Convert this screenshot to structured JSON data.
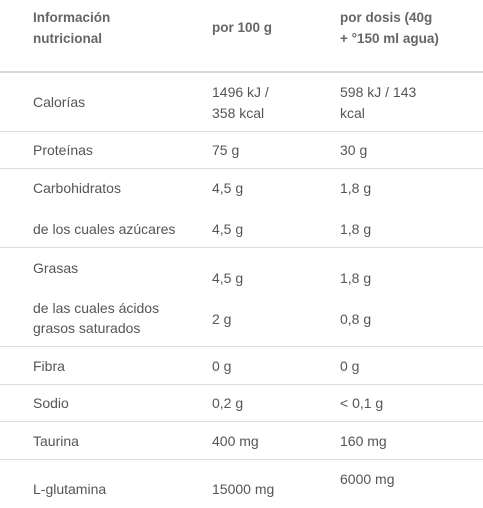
{
  "table": {
    "headers": {
      "col1": [
        "Información",
        "nutricional"
      ],
      "col2": "por 100 g",
      "col3": [
        "por dosis (40g",
        "+ °150 ml agua)"
      ]
    },
    "rows": [
      {
        "label": [
          "Calorías"
        ],
        "per100": [
          "1496 kJ /",
          "358 kcal"
        ],
        "dose": [
          "598 kJ / 143",
          "kcal"
        ]
      },
      {
        "label": [
          "Proteínas"
        ],
        "per100": [
          "75 g"
        ],
        "dose": [
          "30 g"
        ]
      },
      {
        "label": [
          "Carbohidratos"
        ],
        "per100": [
          "4,5 g"
        ],
        "dose": [
          "1,8 g"
        ]
      },
      {
        "label": [
          "de los cuales azúcares"
        ],
        "per100": [
          "4,5 g"
        ],
        "dose": [
          "1,8 g"
        ]
      },
      {
        "label": [
          "Grasas"
        ],
        "per100": [
          "4,5 g"
        ],
        "dose": [
          "1,8 g"
        ]
      },
      {
        "label": [
          "de las cuales ácidos",
          "grasos saturados"
        ],
        "per100": [
          "2 g"
        ],
        "dose": [
          "0,8 g"
        ]
      },
      {
        "label": [
          "Fibra"
        ],
        "per100": [
          "0 g"
        ],
        "dose": [
          "0 g"
        ]
      },
      {
        "label": [
          "Sodio"
        ],
        "per100": [
          "0,2 g"
        ],
        "dose": [
          "< 0,1 g"
        ]
      },
      {
        "label": [
          "Taurina"
        ],
        "per100": [
          "400 mg"
        ],
        "dose": [
          "160 mg"
        ]
      },
      {
        "label": [
          "L-glutamina"
        ],
        "per100": [
          "15000 mg"
        ],
        "dose": [
          "6000 mg"
        ]
      }
    ]
  }
}
